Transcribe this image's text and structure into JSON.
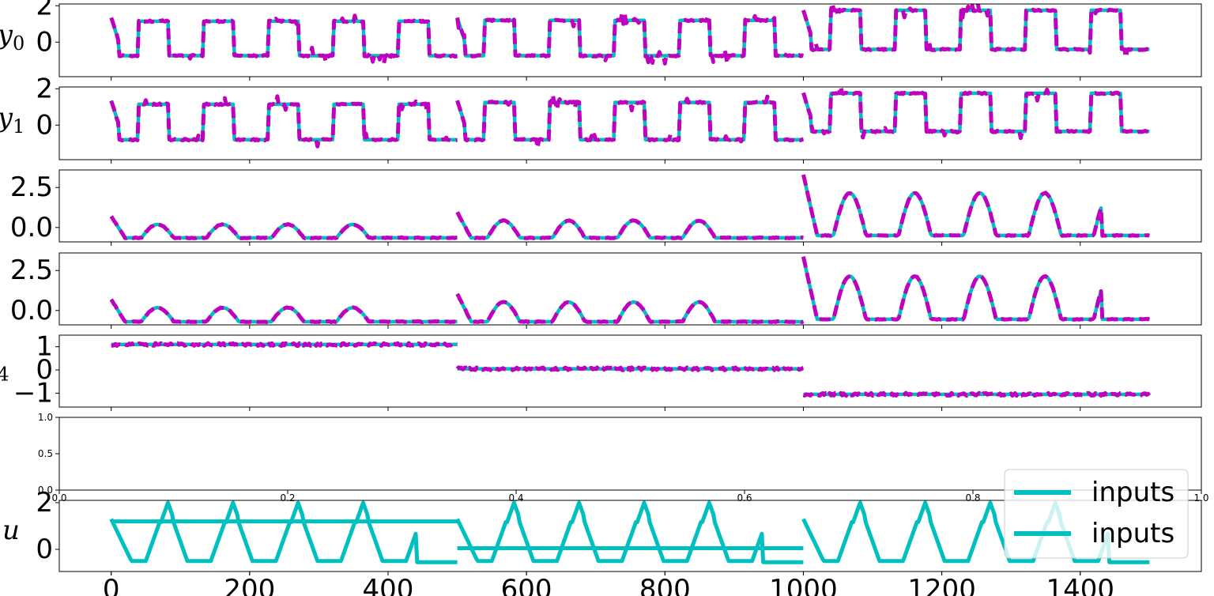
{
  "figure": {
    "line_colors": {
      "reference": "#00bfbf",
      "prediction": "#bf00bf"
    },
    "time_ticks": [
      "0",
      "200",
      "400",
      "600",
      "800",
      "1000",
      "1200",
      "1400"
    ]
  },
  "chart_data": [
    {
      "type": "line",
      "panel": "y0",
      "ylabel_base": "y",
      "ylabel_sub": "0",
      "xlim": [
        -75,
        1575
      ],
      "ylim": [
        -1.9,
        2.1
      ],
      "yticks": [
        {
          "v": 2,
          "label": "2"
        },
        {
          "v": 0,
          "label": "0"
        }
      ],
      "generator": "square",
      "params": {
        "segments": [
          {
            "start": 0,
            "end": 500,
            "low": -0.75,
            "high": 1.15,
            "period": 94,
            "first_peak": 1.35,
            "delay": 40
          },
          {
            "start": 500,
            "end": 1000,
            "low": -0.75,
            "high": 1.2,
            "period": 94,
            "first_peak": 1.35,
            "delay": 40
          },
          {
            "start": 1000,
            "end": 1500,
            "low": -0.4,
            "high": 1.75,
            "period": 94,
            "first_peak": 1.75,
            "delay": 40
          }
        ]
      },
      "series": [
        {
          "name": "",
          "style": "solid"
        },
        {
          "name": "",
          "style": "dashed"
        }
      ]
    },
    {
      "type": "line",
      "panel": "y1",
      "ylabel_base": "y",
      "ylabel_sub": "1",
      "xlim": [
        -75,
        1575
      ],
      "ylim": [
        -1.9,
        2.1
      ],
      "yticks": [
        {
          "v": 2,
          "label": "2"
        },
        {
          "v": 0,
          "label": "0"
        }
      ],
      "generator": "square",
      "params": {
        "segments": [
          {
            "start": 0,
            "end": 500,
            "low": -0.8,
            "high": 1.15,
            "period": 94,
            "first_peak": 1.35,
            "delay": 40
          },
          {
            "start": 500,
            "end": 1000,
            "low": -0.8,
            "high": 1.25,
            "period": 94,
            "first_peak": 1.35,
            "delay": 40
          },
          {
            "start": 1000,
            "end": 1500,
            "low": -0.35,
            "high": 1.75,
            "period": 94,
            "first_peak": 1.75,
            "delay": 40
          }
        ]
      },
      "series": [
        {
          "name": "",
          "style": "solid"
        },
        {
          "name": "",
          "style": "dashed"
        }
      ]
    },
    {
      "type": "line",
      "panel": "y2",
      "ylabel_base": "",
      "ylabel_sub": "",
      "xlim": [
        -75,
        1575
      ],
      "ylim": [
        -0.9,
        3.6
      ],
      "yticks": [
        {
          "v": 2.5,
          "label": "2.5"
        },
        {
          "v": 0,
          "label": "0.0"
        }
      ],
      "generator": "pulse",
      "params": {
        "segments": [
          {
            "start": 0,
            "end": 500,
            "base": -0.65,
            "amp": 1.2,
            "period": 94,
            "first_peak": 0.7
          },
          {
            "start": 500,
            "end": 1000,
            "base": -0.65,
            "amp": 1.55,
            "period": 94,
            "first_peak": 0.95
          },
          {
            "start": 1000,
            "end": 1500,
            "base": -0.5,
            "amp": 3.8,
            "period": 94,
            "first_peak": 3.3
          }
        ]
      },
      "series": [
        {
          "name": "",
          "style": "solid"
        },
        {
          "name": "",
          "style": "dashed"
        }
      ]
    },
    {
      "type": "line",
      "panel": "y3",
      "ylabel_base": "",
      "ylabel_sub": "",
      "xlim": [
        -75,
        1575
      ],
      "ylim": [
        -0.9,
        3.6
      ],
      "yticks": [
        {
          "v": 2.5,
          "label": "2.5"
        },
        {
          "v": 0,
          "label": "0.0"
        }
      ],
      "generator": "pulse",
      "params": {
        "segments": [
          {
            "start": 0,
            "end": 500,
            "base": -0.7,
            "amp": 1.25,
            "period": 94,
            "first_peak": 0.7
          },
          {
            "start": 500,
            "end": 1000,
            "base": -0.7,
            "amp": 1.75,
            "period": 94,
            "first_peak": 1.05
          },
          {
            "start": 1000,
            "end": 1500,
            "base": -0.55,
            "amp": 3.85,
            "period": 94,
            "first_peak": 3.35
          }
        ]
      },
      "series": [
        {
          "name": "",
          "style": "solid"
        },
        {
          "name": "",
          "style": "dashed"
        }
      ]
    },
    {
      "type": "line",
      "panel": "y4",
      "ylabel_base": "",
      "ylabel_sub": "4",
      "xlim": [
        -75,
        1575
      ],
      "ylim": [
        -1.6,
        1.5
      ],
      "yticks": [
        {
          "v": 1,
          "label": "1"
        },
        {
          "v": 0,
          "label": "0"
        },
        {
          "v": -1,
          "label": "−1"
        }
      ],
      "generator": "step",
      "params": {
        "segments": [
          {
            "start": 0,
            "end": 500,
            "v": 1.1
          },
          {
            "start": 500,
            "end": 1000,
            "v": 0.05
          },
          {
            "start": 1000,
            "end": 1500,
            "v": -1.05
          }
        ]
      },
      "series": [
        {
          "name": "",
          "style": "solid"
        },
        {
          "name": "",
          "style": "dashed"
        }
      ]
    },
    {
      "type": "line",
      "panel": "empty",
      "ylabel_base": "",
      "ylabel_sub": "",
      "xlim": [
        0,
        1
      ],
      "ylim": [
        0,
        1
      ],
      "yticks": [
        {
          "v": 1,
          "label": "1.0"
        },
        {
          "v": 0.5,
          "label": "0.5"
        },
        {
          "v": 0,
          "label": "0.0"
        }
      ],
      "xticks": [
        {
          "v": 0,
          "label": "0.0"
        },
        {
          "v": 0.2,
          "label": "0.2"
        },
        {
          "v": 0.4,
          "label": "0.4"
        },
        {
          "v": 0.6,
          "label": "0.6"
        },
        {
          "v": 0.8,
          "label": "0.8"
        },
        {
          "v": 1,
          "label": "1.0"
        }
      ],
      "series": []
    },
    {
      "type": "line",
      "panel": "u",
      "ylabel_base": "u",
      "ylabel_sub": "",
      "xlim": [
        -75,
        1575
      ],
      "ylim": [
        -0.95,
        2.1
      ],
      "yticks": [
        {
          "v": 2,
          "label": "2"
        },
        {
          "v": 0,
          "label": "0"
        }
      ],
      "xticks": [
        {
          "v": 0,
          "label": "0"
        },
        {
          "v": 200,
          "label": "200"
        },
        {
          "v": 400,
          "label": "400"
        },
        {
          "v": 600,
          "label": "600"
        },
        {
          "v": 800,
          "label": "800"
        },
        {
          "v": 1000,
          "label": "1000"
        },
        {
          "v": 1200,
          "label": "1200"
        },
        {
          "v": 1400,
          "label": "1400"
        }
      ],
      "generator": "inputs",
      "params": {
        "segments": [
          {
            "start": 0,
            "end": 500,
            "u1": 1.2,
            "low": -0.55,
            "high": 2.0,
            "period": 94
          },
          {
            "start": 500,
            "end": 1000,
            "u1": 0.05,
            "low": -0.55,
            "high": 2.0,
            "period": 94
          },
          {
            "start": 1000,
            "end": 1500,
            "u1": -1.1,
            "low": -0.55,
            "high": 2.0,
            "period": 94
          }
        ]
      },
      "series": [
        {
          "name": "inputs",
          "style": "solid"
        },
        {
          "name": "inputs",
          "style": "solid"
        }
      ],
      "legend": {
        "position": "lower-right",
        "entries": [
          "inputs",
          "inputs"
        ]
      }
    }
  ]
}
